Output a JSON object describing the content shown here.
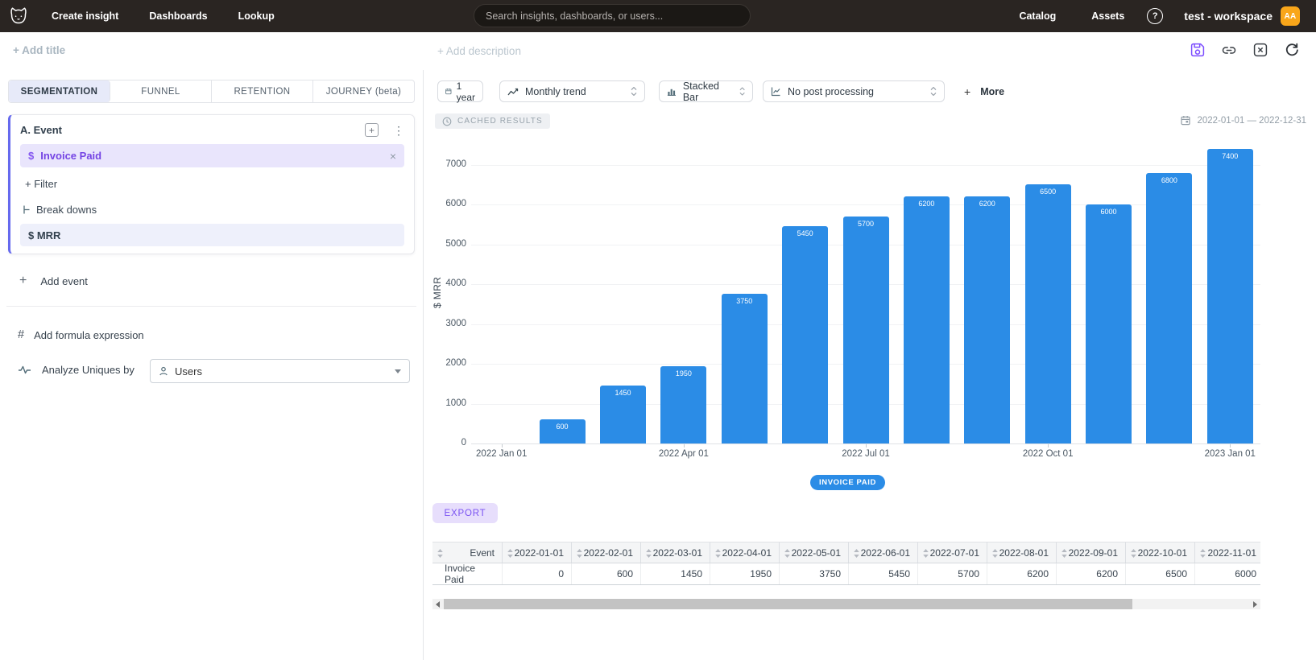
{
  "header": {
    "nav_items": [
      "Create insight",
      "Dashboards",
      "Lookup"
    ],
    "search_placeholder": "Search insights, dashboards, or users...",
    "catalog_label": "Catalog",
    "assets_label": "Assets",
    "help_label": "?",
    "workspace_label": "test - workspace",
    "avatar_initials": "AA"
  },
  "titlebar": {
    "add_title_label": "+ Add title",
    "add_description_label": "+ Add description"
  },
  "left_panel": {
    "tabs": [
      {
        "label": "SEGMENTATION",
        "active": true
      },
      {
        "label": "FUNNEL",
        "active": false
      },
      {
        "label": "RETENTION",
        "active": false
      },
      {
        "label": "JOURNEY (beta)",
        "active": false
      }
    ],
    "event_card": {
      "title": "A.  Event",
      "event_prefix": "$",
      "event_name": "Invoice Paid",
      "close_glyph": "×",
      "filter_label": "+ Filter",
      "breakdowns_label": "Break downs",
      "breakdown_value": "$ MRR"
    },
    "add_event_label": "Add event",
    "add_event_plus": "+",
    "add_formula_label": "Add formula expression",
    "formula_hash": "#",
    "analyze_uniques_label": "Analyze Uniques by",
    "analyze_uniques_value": "Users"
  },
  "toolbar": {
    "date_preset_label": "1 year",
    "trend_value": "Monthly trend",
    "chart_type_value": "Stacked Bar",
    "post_processing_value": "No post processing",
    "more_plus": "+",
    "more_label": "More"
  },
  "results_header": {
    "cached_badge_label": "CACHED RESULTS",
    "date_range_label": "2022-01-01 — 2022-12-31"
  },
  "chart_data": {
    "type": "bar",
    "title": "",
    "xlabel": "",
    "ylabel": "$ MRR",
    "x": [
      "2022-01-01",
      "2022-02-01",
      "2022-03-01",
      "2022-04-01",
      "2022-05-01",
      "2022-06-01",
      "2022-07-01",
      "2022-08-01",
      "2022-09-01",
      "2022-10-01",
      "2022-11-01",
      "2022-12-01",
      "2023-01-01"
    ],
    "series": [
      {
        "name": "INVOICE PAID",
        "values": [
          0,
          600,
          1450,
          1950,
          3750,
          5450,
          5700,
          6200,
          6200,
          6500,
          6000,
          6800,
          7400
        ]
      }
    ],
    "x_tick_labels": [
      "2022 Jan 01",
      "2022 Apr 01",
      "2022 Jul 01",
      "2022 Oct 01",
      "2023 Jan 01"
    ],
    "x_tick_slots": [
      0,
      3,
      6,
      9,
      12
    ],
    "y_ticks": [
      0,
      1000,
      2000,
      3000,
      4000,
      5000,
      6000,
      7000
    ],
    "ylim": [
      0,
      7600
    ],
    "grid": true,
    "legend_position": "bottom",
    "bar_color": "#2b8ce6"
  },
  "legend": {
    "label": "INVOICE PAID"
  },
  "export_label": "EXPORT",
  "table": {
    "columns": [
      "Event",
      "2022-01-01",
      "2022-02-01",
      "2022-03-01",
      "2022-04-01",
      "2022-05-01",
      "2022-06-01",
      "2022-07-01",
      "2022-08-01",
      "2022-09-01",
      "2022-10-01",
      "2022-11-01"
    ],
    "rows": [
      {
        "cells": [
          "Invoice Paid",
          "0",
          "600",
          "1450",
          "1950",
          "3750",
          "5450",
          "5700",
          "6200",
          "6200",
          "6500",
          "6000"
        ]
      }
    ]
  },
  "colors": {
    "header_bg": "#2a2522",
    "accent_purple": "#7c4dff",
    "bar_blue": "#2b8ce6",
    "avatar_orange": "#f9a61a",
    "active_tab_bg": "#e7eaf9",
    "event_row_bg": "#e9e5fc",
    "breakdown_row_bg": "#eef0fb"
  }
}
